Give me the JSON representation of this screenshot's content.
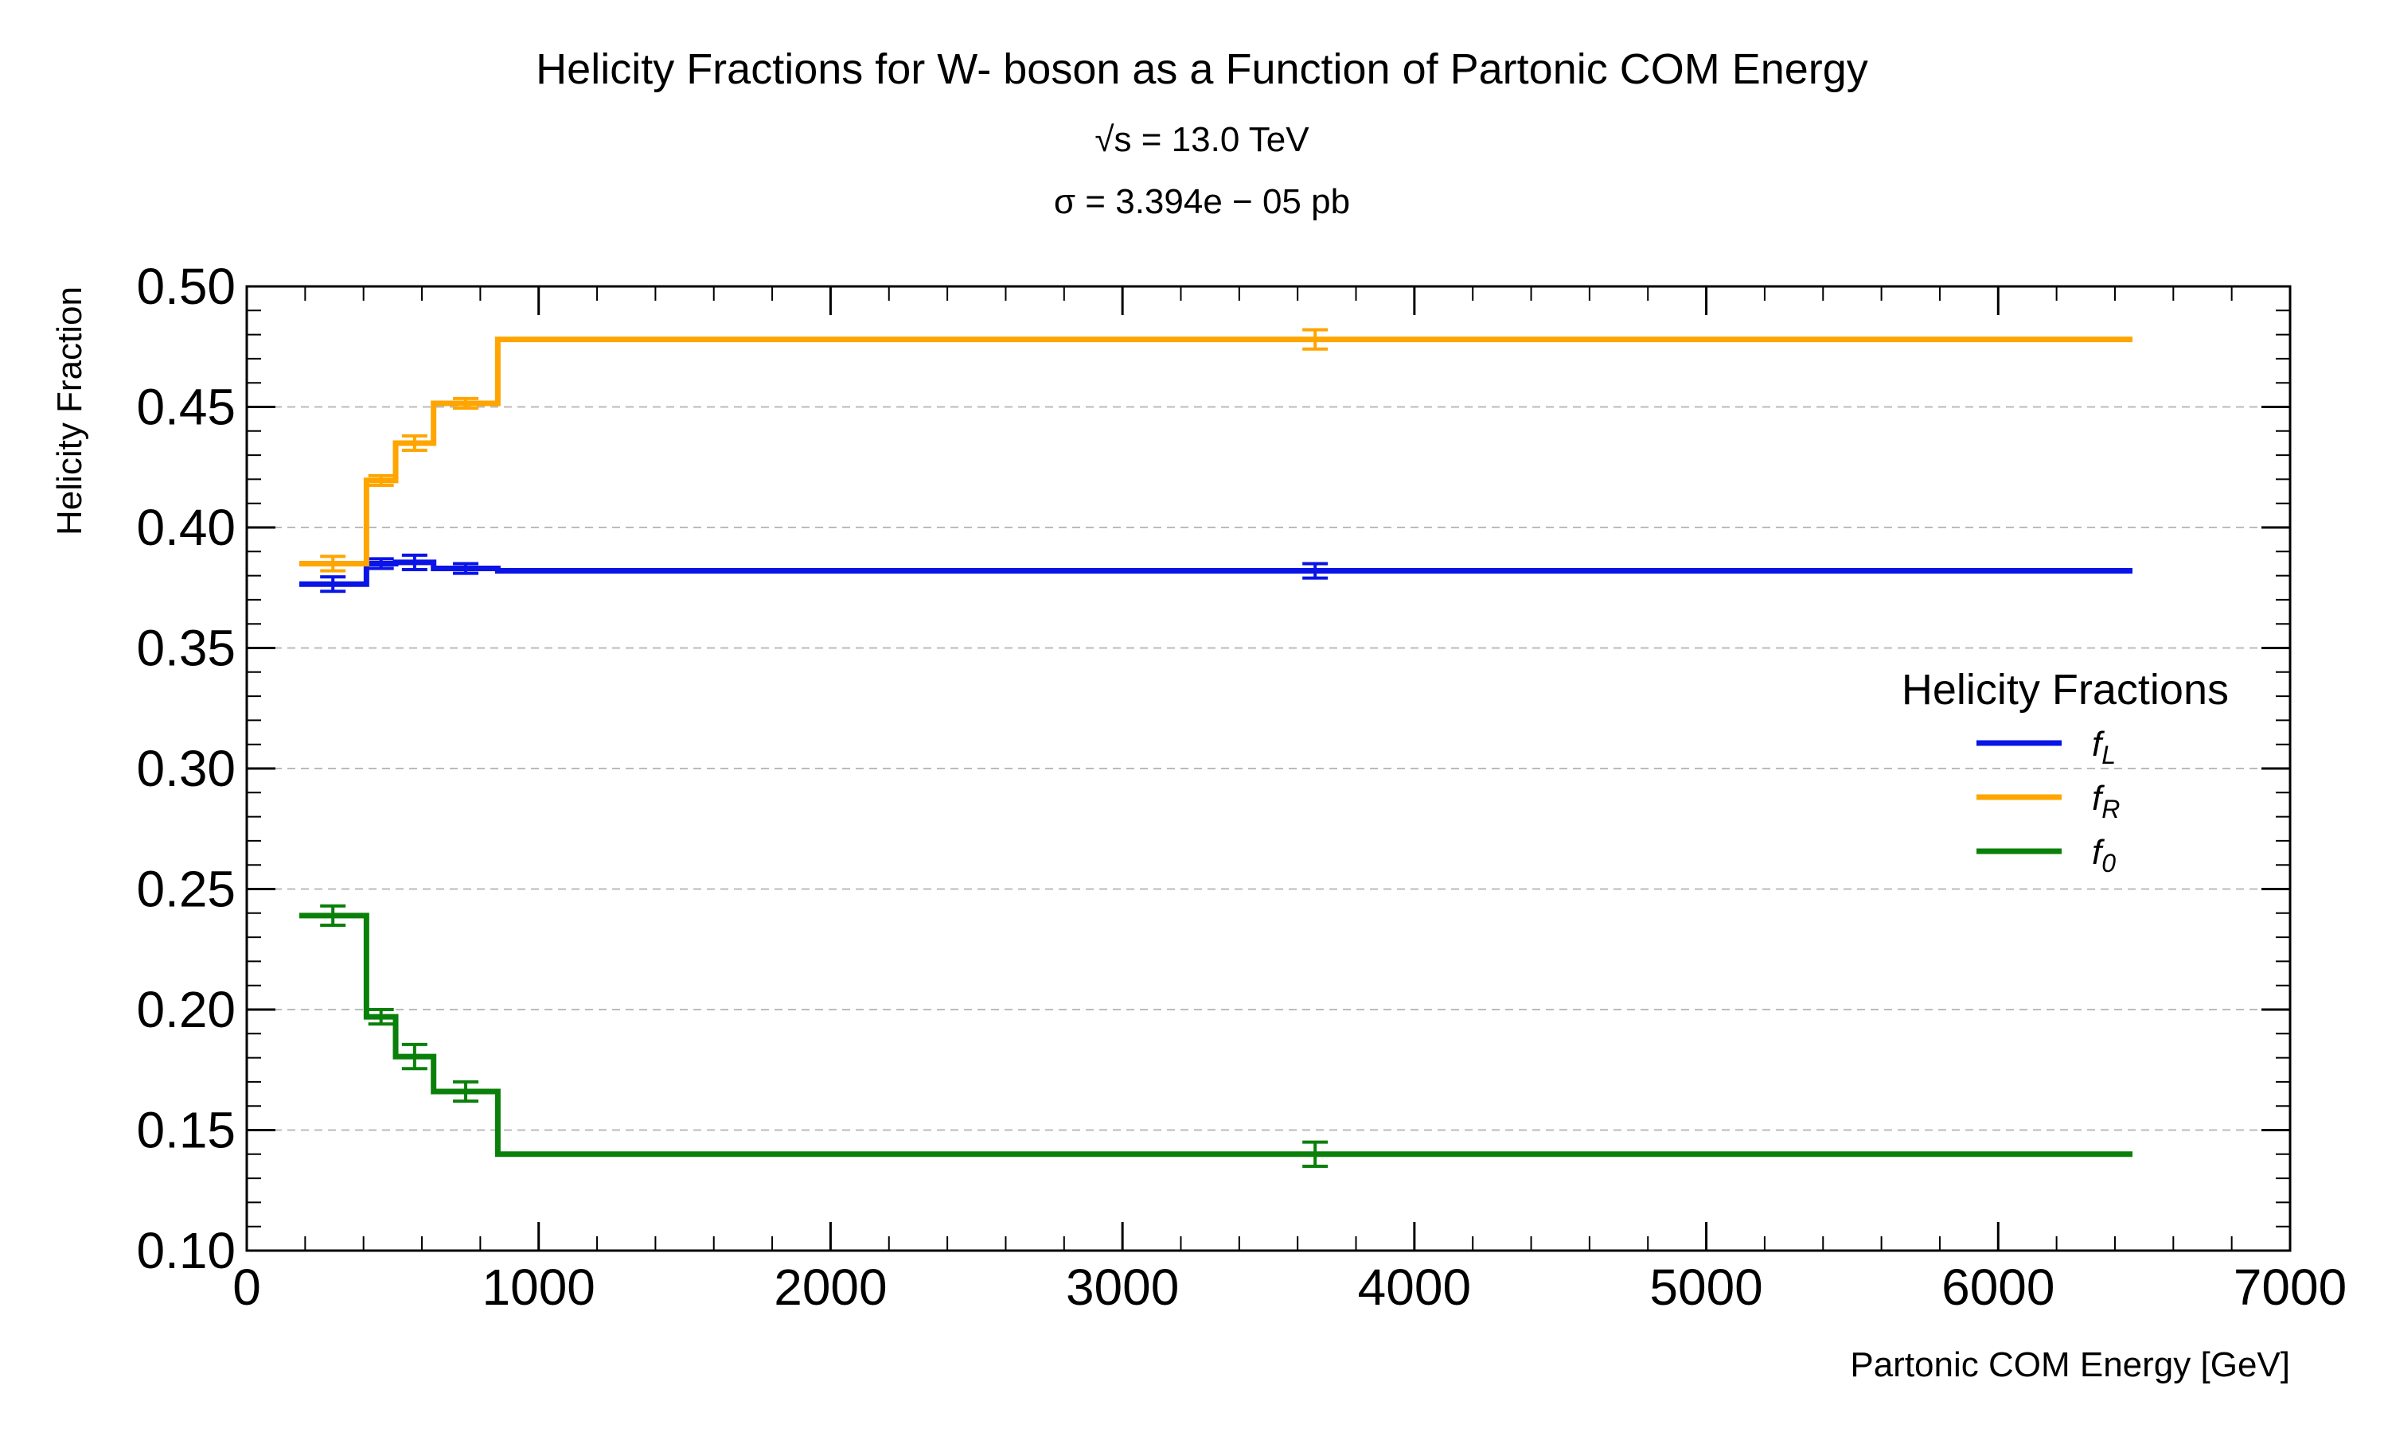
{
  "chart_data": {
    "type": "line",
    "step": true,
    "title": "Helicity Fractions for W- boson as a Function of Partonic COM Energy",
    "subtitle_sqrt_s": "√s = 13.0 TeV",
    "subtitle_sigma": "σ = 3.394e − 05 pb",
    "xlabel": "Partonic COM Energy [GeV]",
    "ylabel": "Helicity Fraction",
    "xlim": [
      0,
      7000
    ],
    "ylim": [
      0.1,
      0.5
    ],
    "xticks": [
      0,
      1000,
      2000,
      3000,
      4000,
      5000,
      6000,
      7000
    ],
    "yticks": [
      0.1,
      0.15,
      0.2,
      0.25,
      0.3,
      0.35,
      0.4,
      0.45,
      0.5
    ],
    "xtick_labels": [
      "0",
      "1000",
      "2000",
      "3000",
      "4000",
      "5000",
      "6000",
      "7000"
    ],
    "ytick_labels": [
      "0.10",
      "0.15",
      "0.20",
      "0.25",
      "0.30",
      "0.35",
      "0.40",
      "0.45",
      "0.50"
    ],
    "grid": "y-dashed",
    "legend_title": "Helicity Fractions",
    "legend_position": "center-right",
    "bin_edges": [
      180,
      410,
      510,
      640,
      860,
      6460
    ],
    "bin_centers": [
      295,
      460,
      575,
      750,
      3660
    ],
    "series": [
      {
        "name": "f",
        "sub": "L",
        "color": "#0a14e6",
        "values": [
          0.3765,
          0.385,
          0.3855,
          0.383,
          0.382
        ],
        "errors": [
          0.003,
          0.002,
          0.003,
          0.002,
          0.003
        ]
      },
      {
        "name": "f",
        "sub": "R",
        "color": "#ffa500",
        "values": [
          0.385,
          0.4195,
          0.435,
          0.4515,
          0.478
        ],
        "errors": [
          0.003,
          0.002,
          0.003,
          0.002,
          0.004
        ]
      },
      {
        "name": "f",
        "sub": "0",
        "color": "#0a800a",
        "values": [
          0.239,
          0.197,
          0.1805,
          0.166,
          0.14
        ],
        "errors": [
          0.004,
          0.003,
          0.005,
          0.004,
          0.005
        ]
      }
    ]
  }
}
